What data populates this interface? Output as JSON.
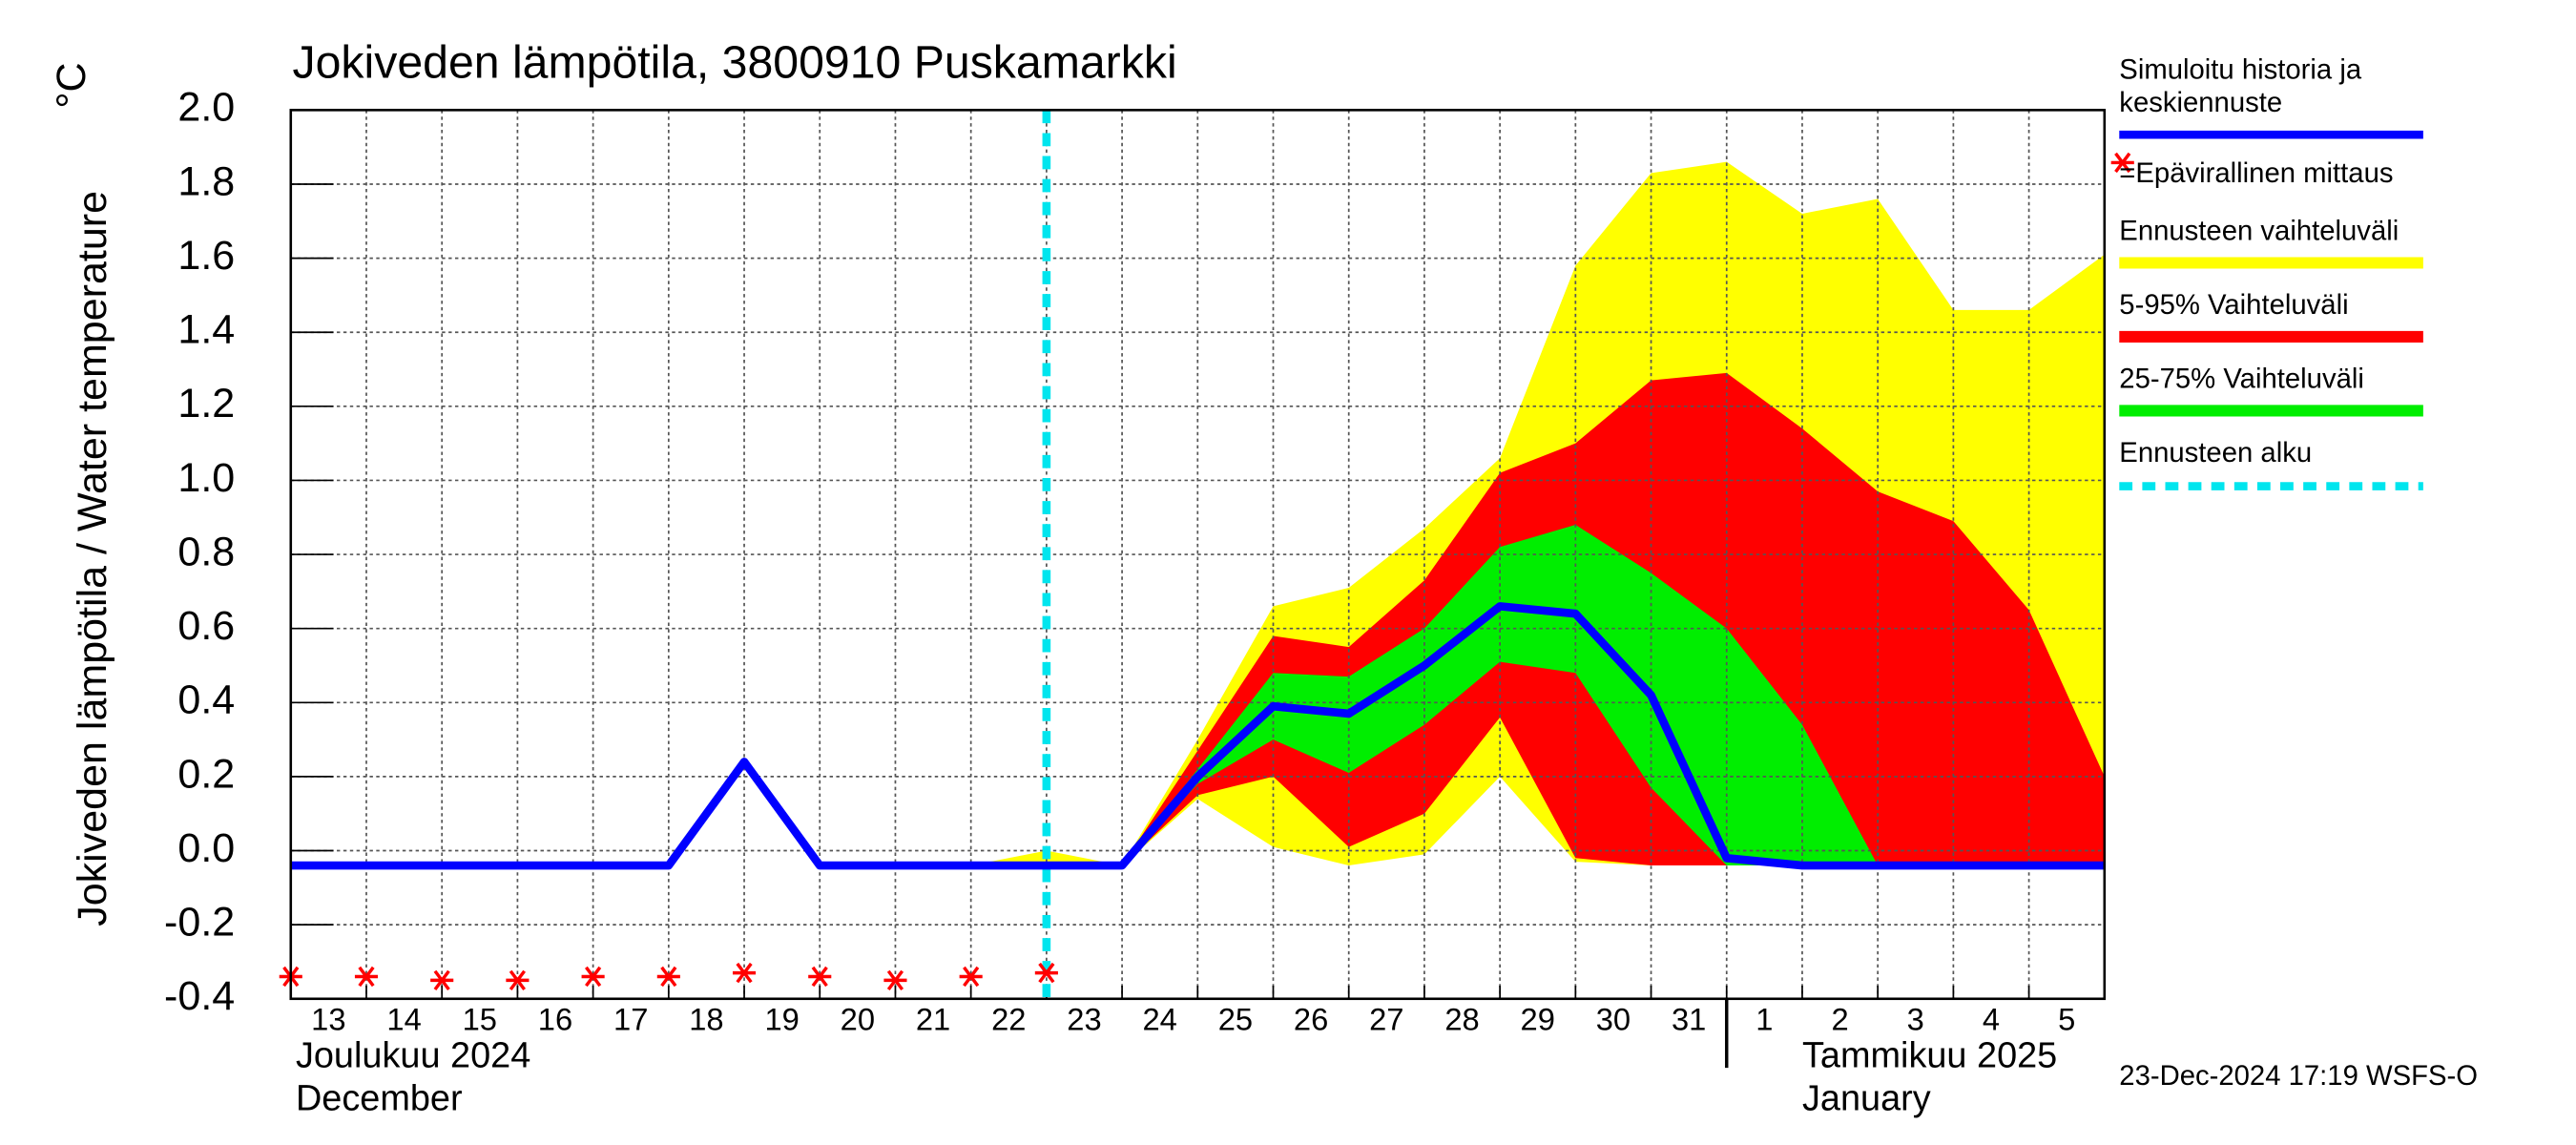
{
  "chart_data": {
    "type": "band-forecast",
    "title": "Jokiveden lämpötila, 3800910 Puskamarkki",
    "y_label": "Jokiveden lämpötila / Water temperature",
    "y_unit": "°C",
    "footer": "23-Dec-2024 17:19 WSFS-O",
    "x": [
      "2024-12-13",
      "2024-12-14",
      "2024-12-15",
      "2024-12-16",
      "2024-12-17",
      "2024-12-18",
      "2024-12-19",
      "2024-12-20",
      "2024-12-21",
      "2024-12-22",
      "2024-12-23",
      "2024-12-24",
      "2024-12-25",
      "2024-12-26",
      "2024-12-27",
      "2024-12-28",
      "2024-12-29",
      "2024-12-30",
      "2024-12-31",
      "2025-01-01",
      "2025-01-02",
      "2025-01-03",
      "2025-01-04",
      "2025-01-05",
      "2025-01-06"
    ],
    "xlim": [
      "2024-12-13",
      "2025-01-06"
    ],
    "xticks": [
      {
        "value": "2024-12-13",
        "label": "13"
      },
      {
        "value": "2024-12-14",
        "label": "14"
      },
      {
        "value": "2024-12-15",
        "label": "15"
      },
      {
        "value": "2024-12-16",
        "label": "16"
      },
      {
        "value": "2024-12-17",
        "label": "17"
      },
      {
        "value": "2024-12-18",
        "label": "18"
      },
      {
        "value": "2024-12-19",
        "label": "19"
      },
      {
        "value": "2024-12-20",
        "label": "20"
      },
      {
        "value": "2024-12-21",
        "label": "21"
      },
      {
        "value": "2024-12-22",
        "label": "22"
      },
      {
        "value": "2024-12-23",
        "label": "23"
      },
      {
        "value": "2024-12-24",
        "label": "24"
      },
      {
        "value": "2024-12-25",
        "label": "25"
      },
      {
        "value": "2024-12-26",
        "label": "26"
      },
      {
        "value": "2024-12-27",
        "label": "27"
      },
      {
        "value": "2024-12-28",
        "label": "28"
      },
      {
        "value": "2024-12-29",
        "label": "29"
      },
      {
        "value": "2024-12-30",
        "label": "30"
      },
      {
        "value": "2024-12-31",
        "label": "31"
      },
      {
        "value": "2025-01-01",
        "label": "1"
      },
      {
        "value": "2025-01-02",
        "label": "2"
      },
      {
        "value": "2025-01-03",
        "label": "3"
      },
      {
        "value": "2025-01-04",
        "label": "4"
      },
      {
        "value": "2025-01-05",
        "label": "5"
      }
    ],
    "months": [
      {
        "start": "2024-12-13",
        "label": "Joulukuu  2024",
        "label_en": "December"
      },
      {
        "start": "2025-01-01",
        "label": "Tammikuu  2025",
        "label_en": "January"
      }
    ],
    "ylim": [
      -0.4,
      2.0
    ],
    "yticks": [
      {
        "value": 2,
        "label": "2.0"
      },
      1.8,
      1.6,
      1.4,
      1.2,
      {
        "value": 1,
        "label": "1.0"
      },
      0.8,
      0.6,
      0.4,
      0.2,
      {
        "value": 0,
        "label": "0.0"
      },
      -0.2,
      -0.4
    ],
    "grid": true,
    "bands": [
      {
        "name": "Ennusteen vaihteluväli",
        "color": "#ffff00",
        "upper": [
          null,
          null,
          null,
          null,
          null,
          null,
          null,
          null,
          null,
          -0.04,
          0.0,
          -0.04,
          0.3,
          0.66,
          0.71,
          0.87,
          1.06,
          1.58,
          1.83,
          1.86,
          1.72,
          1.76,
          1.46,
          1.46,
          1.61
        ],
        "lower": [
          null,
          null,
          null,
          null,
          null,
          null,
          null,
          null,
          null,
          -0.04,
          -0.04,
          -0.04,
          0.14,
          0.01,
          -0.04,
          -0.01,
          0.2,
          -0.03,
          -0.04,
          -0.04,
          -0.04,
          -0.04,
          -0.04,
          -0.04,
          -0.04
        ]
      },
      {
        "name": "5-95% Vaihteluväli",
        "color": "#ff0000",
        "upper": [
          null,
          null,
          null,
          null,
          null,
          null,
          null,
          null,
          null,
          null,
          null,
          -0.04,
          0.27,
          0.58,
          0.55,
          0.73,
          1.02,
          1.1,
          1.27,
          1.29,
          1.14,
          0.97,
          0.89,
          0.65,
          0.2
        ],
        "lower": [
          null,
          null,
          null,
          null,
          null,
          null,
          null,
          null,
          null,
          null,
          null,
          -0.04,
          0.15,
          0.2,
          0.01,
          0.1,
          0.36,
          -0.02,
          -0.04,
          -0.04,
          -0.04,
          -0.04,
          -0.04,
          -0.04,
          -0.04
        ]
      },
      {
        "name": "25-75% Vaihteluväli",
        "color": "#00ee00",
        "upper": [
          null,
          null,
          null,
          null,
          null,
          null,
          null,
          null,
          null,
          null,
          null,
          -0.04,
          0.22,
          0.48,
          0.47,
          0.6,
          0.82,
          0.88,
          0.75,
          0.6,
          0.34,
          -0.04,
          -0.04,
          -0.04,
          -0.04
        ],
        "lower": [
          null,
          null,
          null,
          null,
          null,
          null,
          null,
          null,
          null,
          null,
          null,
          -0.04,
          0.18,
          0.3,
          0.21,
          0.34,
          0.51,
          0.48,
          0.17,
          -0.04,
          -0.04,
          -0.04,
          -0.04,
          -0.04,
          -0.04
        ]
      }
    ],
    "series": [
      {
        "name": "Simuloitu historia ja\nkeskiennuste",
        "color": "#0000ff",
        "values": [
          -0.04,
          -0.04,
          -0.04,
          -0.04,
          -0.04,
          -0.04,
          0.24,
          -0.04,
          -0.04,
          -0.04,
          -0.04,
          -0.04,
          0.2,
          0.39,
          0.37,
          0.5,
          0.66,
          0.64,
          0.42,
          -0.02,
          -0.04,
          -0.04,
          -0.04,
          -0.04,
          -0.04
        ]
      }
    ],
    "measurements": {
      "name": "=Epävirallinen mittaus",
      "color": "#ff0000",
      "values": [
        -0.34,
        -0.34,
        -0.35,
        -0.35,
        -0.34,
        -0.34,
        -0.33,
        -0.34,
        -0.35,
        -0.34,
        -0.33,
        null,
        null,
        null,
        null,
        null,
        null,
        null,
        null,
        null,
        null,
        null,
        null,
        null,
        null
      ]
    },
    "forecast_start": {
      "name": "Ennusteen alku",
      "x": "2024-12-23",
      "color": "#00e5ee"
    }
  }
}
